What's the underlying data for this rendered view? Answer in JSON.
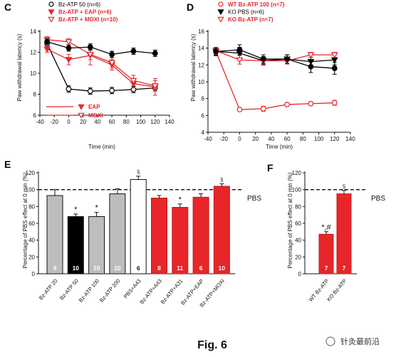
{
  "figure_title": "Fig. 6",
  "watermark": "针灸最前沿",
  "reference_label": "PBS",
  "chart_data": [
    {
      "id": "C",
      "type": "line",
      "panel": "C",
      "xlabel": "Time (min)",
      "ylabel": "Paw withdrawal latency (s)",
      "xlim": [
        -40,
        140
      ],
      "ylim": [
        6,
        14
      ],
      "xticks": [
        -40,
        -20,
        0,
        20,
        40,
        60,
        80,
        100,
        120,
        140
      ],
      "yticks": [
        6,
        8,
        10,
        12,
        14
      ],
      "x": [
        -30,
        0,
        30,
        60,
        90,
        120
      ],
      "series": [
        {
          "name": "Bz-ATP 50 (n=6)",
          "color": "#000000",
          "marker": "open-circle",
          "values": [
            12.8,
            8.5,
            8.3,
            8.35,
            8.45,
            8.6
          ],
          "err": [
            0.3,
            0.3,
            0.3,
            0.3,
            0.3,
            0.3
          ]
        },
        {
          "name": "Bz-ATP + EAP (n=6)",
          "color": "#e8262a",
          "marker": "filled-triangle-down",
          "values": [
            12.3,
            11.3,
            11.7,
            10.8,
            9.0,
            8.7
          ],
          "err": [
            0.3,
            0.5,
            0.9,
            0.5,
            0.4,
            0.8
          ]
        },
        {
          "name": "Bz-ATP + MOXI (n=10)",
          "color": "#e8262a",
          "marker": "open-triangle-down",
          "values": [
            13.2,
            13.0,
            11.8,
            11.0,
            9.3,
            8.8
          ],
          "err": [
            0.3,
            0.3,
            0.5,
            0.5,
            0.5,
            0.5
          ]
        },
        {
          "name": "",
          "color": "#000000",
          "marker": "filled-circle",
          "values": [
            13.0,
            12.4,
            12.5,
            11.8,
            12.1,
            11.9
          ],
          "err": [
            0.3,
            0.3,
            0.3,
            0.3,
            0.3,
            0.3
          ]
        }
      ],
      "extra_legend": [
        {
          "name": "EAP",
          "color": "#e8262a",
          "marker": "filled-triangle-down"
        },
        {
          "name": "MOXI",
          "color": "#e8262a",
          "marker": "open-triangle-down"
        }
      ]
    },
    {
      "id": "D",
      "type": "line",
      "panel": "D",
      "xlabel": "Time (min)",
      "ylabel": "Paw withdrawal latency (s)",
      "xlim": [
        -40,
        140
      ],
      "ylim": [
        4,
        16
      ],
      "xticks": [
        -40,
        -20,
        0,
        20,
        40,
        60,
        80,
        100,
        120,
        140
      ],
      "yticks": [
        4,
        6,
        8,
        10,
        12,
        14,
        16
      ],
      "x": [
        -30,
        0,
        30,
        60,
        90,
        120
      ],
      "series": [
        {
          "name": "WT Bz-ATP 100 (n=7)",
          "color": "#e8262a",
          "marker": "open-circle",
          "values": [
            13.6,
            6.7,
            6.8,
            7.3,
            7.4,
            7.5
          ],
          "err": [
            0.4,
            0.2,
            0.3,
            0.2,
            0.2,
            0.3
          ]
        },
        {
          "name": "KO PBS (n=6)",
          "color": "#000000",
          "marker": "filled-triangle-down",
          "values": [
            13.6,
            13.4,
            12.5,
            12.7,
            12.4,
            12.6
          ],
          "err": [
            0.5,
            0.7,
            0.5,
            0.5,
            0.5,
            0.6
          ]
        },
        {
          "name": "KO Bz-ATP (n=7)",
          "color": "#e8262a",
          "marker": "open-triangle-down",
          "values": [
            13.7,
            12.6,
            12.5,
            12.5,
            13.2,
            13.2
          ],
          "err": [
            0.4,
            0.5,
            0.4,
            0.4,
            0.3,
            0.3
          ]
        },
        {
          "name": "",
          "color": "#000000",
          "marker": "filled-circle",
          "values": [
            13.6,
            13.8,
            12.7,
            12.7,
            11.8,
            11.6
          ],
          "err": [
            0.4,
            0.6,
            0.5,
            0.5,
            0.7,
            0.7
          ]
        }
      ]
    },
    {
      "id": "E",
      "type": "bar",
      "panel": "E",
      "ylabel": "Percentage of PBS effect at 0 min (%)",
      "ylim": [
        0,
        120
      ],
      "yticks": [
        0,
        20,
        40,
        60,
        80,
        100,
        120
      ],
      "reference_line": 100,
      "categories": [
        "Bz-ATP 20",
        "Bz-ATP 50",
        "Bz-ATP 100",
        "Bz-ATP 200",
        "PBS+A43",
        "Bz-ATP+A43",
        "Bz-ATP+A31",
        "Bz-ATP+EAP",
        "Bz-ATP+MOXI"
      ],
      "values": [
        93,
        68,
        68,
        95,
        112,
        90,
        79,
        91,
        104
      ],
      "err": [
        7,
        3,
        5,
        6,
        4,
        3,
        4,
        4,
        3
      ],
      "n": [
        "9",
        "10",
        "10",
        "10",
        "6",
        "8",
        "11",
        "6",
        "10"
      ],
      "colors": [
        "#bdbdbd",
        "#000000",
        "#bdbdbd",
        "#bdbdbd",
        "#ffffff",
        "#e8262a",
        "#e8262a",
        "#e8262a",
        "#e8262a"
      ],
      "annotations": [
        "",
        "*",
        "*",
        "",
        "§",
        "",
        "*",
        "",
        "§"
      ]
    },
    {
      "id": "F",
      "type": "bar",
      "panel": "F",
      "ylabel": "Percentage of PBS effect at 0 min (%)",
      "ylim": [
        0,
        120
      ],
      "yticks": [
        0,
        20,
        40,
        60,
        80,
        100,
        120
      ],
      "reference_line": 100,
      "categories": [
        "WT Bz-ATP",
        "KO Bz-ATP"
      ],
      "values": [
        47,
        95
      ],
      "err": [
        3,
        4
      ],
      "n": [
        "7",
        "7"
      ],
      "colors": [
        "#e8262a",
        "#e8262a"
      ],
      "annotations": [
        "*,#",
        "§"
      ]
    }
  ]
}
